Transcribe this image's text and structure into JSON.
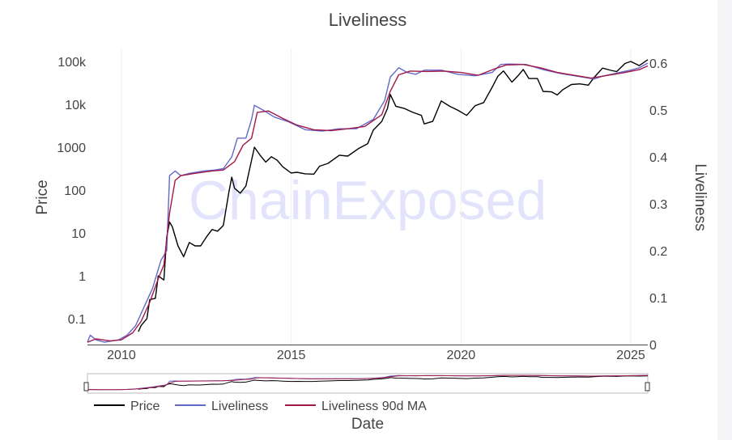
{
  "chart_data": {
    "type": "line",
    "title": "Liveliness",
    "watermark": "ChainExposed",
    "xlabel": "Date",
    "ylabel_left": "Price",
    "ylabel_right": "Liveliness",
    "x_ticks": [
      "2010",
      "2015",
      "2020",
      "2025"
    ],
    "x_range": [
      "2009-01",
      "2025-07"
    ],
    "y_left": {
      "scale": "log",
      "ticks": [
        "0.1",
        "1",
        "10",
        "100",
        "1000",
        "10k",
        "100k"
      ],
      "tick_values": [
        0.1,
        1,
        10,
        100,
        1000,
        10000,
        100000
      ],
      "range": [
        0.025,
        200000
      ]
    },
    "y_right": {
      "scale": "linear",
      "ticks": [
        "0",
        "0.1",
        "0.2",
        "0.3",
        "0.4",
        "0.5",
        "0.6"
      ],
      "tick_values": [
        0,
        0.1,
        0.2,
        0.3,
        0.4,
        0.5,
        0.6
      ],
      "range": [
        0,
        0.6
      ]
    },
    "legend_position": "bottom-left",
    "series": [
      {
        "name": "Price",
        "axis": "left",
        "color": "#000000",
        "points": [
          [
            "2010-07",
            0.05
          ],
          [
            "2010-08",
            0.07
          ],
          [
            "2010-10",
            0.1
          ],
          [
            "2010-11",
            0.28
          ],
          [
            "2011-01",
            0.3
          ],
          [
            "2011-02",
            1
          ],
          [
            "2011-04",
            0.8
          ],
          [
            "2011-05",
            8
          ],
          [
            "2011-06",
            18
          ],
          [
            "2011-07",
            14
          ],
          [
            "2011-09",
            5
          ],
          [
            "2011-11",
            2.8
          ],
          [
            "2012-01",
            6
          ],
          [
            "2012-03",
            5
          ],
          [
            "2012-05",
            5
          ],
          [
            "2012-07",
            8
          ],
          [
            "2012-09",
            12
          ],
          [
            "2012-11",
            11
          ],
          [
            "2013-01",
            15
          ],
          [
            "2013-03",
            90
          ],
          [
            "2013-04",
            200
          ],
          [
            "2013-05",
            110
          ],
          [
            "2013-07",
            85
          ],
          [
            "2013-09",
            125
          ],
          [
            "2013-11",
            500
          ],
          [
            "2013-12",
            1000
          ],
          [
            "2014-02",
            650
          ],
          [
            "2014-04",
            450
          ],
          [
            "2014-06",
            600
          ],
          [
            "2014-08",
            500
          ],
          [
            "2014-10",
            350
          ],
          [
            "2015-01",
            250
          ],
          [
            "2015-03",
            260
          ],
          [
            "2015-06",
            240
          ],
          [
            "2015-09",
            235
          ],
          [
            "2015-11",
            360
          ],
          [
            "2016-02",
            420
          ],
          [
            "2016-06",
            650
          ],
          [
            "2016-09",
            620
          ],
          [
            "2017-01",
            950
          ],
          [
            "2017-04",
            1200
          ],
          [
            "2017-06",
            2500
          ],
          [
            "2017-09",
            4000
          ],
          [
            "2017-11",
            8000
          ],
          [
            "2017-12",
            17000
          ],
          [
            "2018-02",
            9000
          ],
          [
            "2018-05",
            8000
          ],
          [
            "2018-08",
            6500
          ],
          [
            "2018-11",
            5500
          ],
          [
            "2018-12",
            3500
          ],
          [
            "2019-03",
            4000
          ],
          [
            "2019-06",
            12000
          ],
          [
            "2019-09",
            9000
          ],
          [
            "2019-12",
            7200
          ],
          [
            "2020-03",
            5500
          ],
          [
            "2020-06",
            9300
          ],
          [
            "2020-09",
            11000
          ],
          [
            "2020-12",
            25000
          ],
          [
            "2021-02",
            45000
          ],
          [
            "2021-04",
            60000
          ],
          [
            "2021-07",
            33000
          ],
          [
            "2021-09",
            45000
          ],
          [
            "2021-11",
            65000
          ],
          [
            "2022-01",
            40000
          ],
          [
            "2022-04",
            40000
          ],
          [
            "2022-06",
            20000
          ],
          [
            "2022-09",
            19500
          ],
          [
            "2022-11",
            16500
          ],
          [
            "2023-01",
            22000
          ],
          [
            "2023-04",
            29000
          ],
          [
            "2023-07",
            30000
          ],
          [
            "2023-10",
            28000
          ],
          [
            "2023-12",
            42000
          ],
          [
            "2024-03",
            70000
          ],
          [
            "2024-06",
            62000
          ],
          [
            "2024-08",
            58000
          ],
          [
            "2024-11",
            90000
          ],
          [
            "2025-01",
            100000
          ],
          [
            "2025-04",
            80000
          ],
          [
            "2025-07",
            110000
          ]
        ]
      },
      {
        "name": "Liveliness",
        "axis": "right",
        "color": "#6468c8",
        "points": [
          [
            "2009-01",
            0.005
          ],
          [
            "2009-02",
            0.02
          ],
          [
            "2009-04",
            0.01
          ],
          [
            "2009-07",
            0.005
          ],
          [
            "2009-12",
            0.01
          ],
          [
            "2010-03",
            0.02
          ],
          [
            "2010-06",
            0.04
          ],
          [
            "2010-09",
            0.08
          ],
          [
            "2010-12",
            0.12
          ],
          [
            "2011-02",
            0.16
          ],
          [
            "2011-03",
            0.18
          ],
          [
            "2011-05",
            0.2
          ],
          [
            "2011-06",
            0.36
          ],
          [
            "2011-08",
            0.37
          ],
          [
            "2011-10",
            0.36
          ],
          [
            "2012-01",
            0.365
          ],
          [
            "2012-06",
            0.37
          ],
          [
            "2012-10",
            0.372
          ],
          [
            "2013-01",
            0.375
          ],
          [
            "2013-04",
            0.4
          ],
          [
            "2013-06",
            0.44
          ],
          [
            "2013-09",
            0.44
          ],
          [
            "2013-11",
            0.48
          ],
          [
            "2013-12",
            0.51
          ],
          [
            "2014-03",
            0.5
          ],
          [
            "2014-07",
            0.485
          ],
          [
            "2014-12",
            0.475
          ],
          [
            "2015-06",
            0.458
          ],
          [
            "2015-12",
            0.455
          ],
          [
            "2016-06",
            0.46
          ],
          [
            "2016-12",
            0.46
          ],
          [
            "2017-06",
            0.48
          ],
          [
            "2017-10",
            0.52
          ],
          [
            "2017-12",
            0.57
          ],
          [
            "2018-03",
            0.59
          ],
          [
            "2018-06",
            0.58
          ],
          [
            "2018-09",
            0.576
          ],
          [
            "2018-12",
            0.585
          ],
          [
            "2019-06",
            0.585
          ],
          [
            "2019-12",
            0.576
          ],
          [
            "2020-06",
            0.573
          ],
          [
            "2020-12",
            0.58
          ],
          [
            "2021-03",
            0.597
          ],
          [
            "2021-06",
            0.598
          ],
          [
            "2021-12",
            0.597
          ],
          [
            "2022-06",
            0.586
          ],
          [
            "2022-12",
            0.578
          ],
          [
            "2023-06",
            0.572
          ],
          [
            "2023-12",
            0.566
          ],
          [
            "2024-03",
            0.572
          ],
          [
            "2024-09",
            0.58
          ],
          [
            "2025-01",
            0.585
          ],
          [
            "2025-04",
            0.59
          ],
          [
            "2025-07",
            0.6
          ]
        ]
      },
      {
        "name": "Liveliness 90d MA",
        "axis": "right",
        "color": "#a01848",
        "points": [
          [
            "2009-01",
            0.005
          ],
          [
            "2009-04",
            0.012
          ],
          [
            "2009-09",
            0.008
          ],
          [
            "2010-01",
            0.01
          ],
          [
            "2010-05",
            0.025
          ],
          [
            "2010-08",
            0.05
          ],
          [
            "2010-11",
            0.09
          ],
          [
            "2011-02",
            0.14
          ],
          [
            "2011-04",
            0.17
          ],
          [
            "2011-06",
            0.28
          ],
          [
            "2011-08",
            0.35
          ],
          [
            "2011-10",
            0.36
          ],
          [
            "2012-03",
            0.365
          ],
          [
            "2012-09",
            0.37
          ],
          [
            "2013-01",
            0.372
          ],
          [
            "2013-05",
            0.39
          ],
          [
            "2013-08",
            0.425
          ],
          [
            "2013-11",
            0.44
          ],
          [
            "2014-01",
            0.495
          ],
          [
            "2014-05",
            0.498
          ],
          [
            "2014-10",
            0.482
          ],
          [
            "2015-03",
            0.468
          ],
          [
            "2015-09",
            0.458
          ],
          [
            "2016-03",
            0.456
          ],
          [
            "2016-09",
            0.46
          ],
          [
            "2017-03",
            0.465
          ],
          [
            "2017-09",
            0.49
          ],
          [
            "2017-12",
            0.54
          ],
          [
            "2018-03",
            0.575
          ],
          [
            "2018-07",
            0.583
          ],
          [
            "2019-01",
            0.582
          ],
          [
            "2019-07",
            0.583
          ],
          [
            "2020-01",
            0.58
          ],
          [
            "2020-07",
            0.574
          ],
          [
            "2021-01",
            0.588
          ],
          [
            "2021-05",
            0.596
          ],
          [
            "2021-11",
            0.597
          ],
          [
            "2022-05",
            0.59
          ],
          [
            "2022-11",
            0.58
          ],
          [
            "2023-05",
            0.574
          ],
          [
            "2023-11",
            0.568
          ],
          [
            "2024-05",
            0.574
          ],
          [
            "2024-11",
            0.58
          ],
          [
            "2025-04",
            0.586
          ],
          [
            "2025-07",
            0.594
          ]
        ]
      }
    ]
  }
}
